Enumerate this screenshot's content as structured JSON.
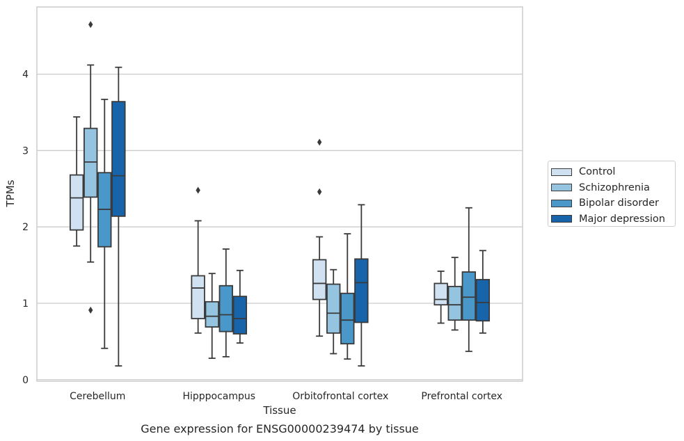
{
  "chart_data": {
    "type": "box",
    "xlabel": "Tissue",
    "ylabel": "TPMs",
    "caption": "Gene expression for ENSG00000239474 by tissue",
    "ylim": [
      -0.02,
      4.88
    ],
    "yticks": [
      0,
      1,
      2,
      3,
      4
    ],
    "grid": "horizontal",
    "legend_position": "right",
    "categories": [
      "Cerebellum",
      "Hipppocampus",
      "Orbitofrontal cortex",
      "Prefrontal cortex"
    ],
    "series": [
      {
        "name": "Control",
        "color": "#d0e1f2",
        "boxes": [
          {
            "whisker_low": 1.75,
            "q1": 1.96,
            "median": 2.38,
            "q3": 2.68,
            "whisker_high": 3.44,
            "outliers": []
          },
          {
            "whisker_low": 0.61,
            "q1": 0.8,
            "median": 1.2,
            "q3": 1.36,
            "whisker_high": 2.08,
            "outliers": [
              2.48
            ]
          },
          {
            "whisker_low": 0.57,
            "q1": 1.05,
            "median": 1.26,
            "q3": 1.57,
            "whisker_high": 1.87,
            "outliers": [
              2.46,
              3.11
            ]
          },
          {
            "whisker_low": 0.74,
            "q1": 0.98,
            "median": 1.05,
            "q3": 1.26,
            "whisker_high": 1.42,
            "outliers": []
          }
        ]
      },
      {
        "name": "Schizophrenia",
        "color": "#94c4df",
        "boxes": [
          {
            "whisker_low": 1.54,
            "q1": 2.39,
            "median": 2.85,
            "q3": 3.29,
            "whisker_high": 4.12,
            "outliers": [
              0.91,
              4.65
            ]
          },
          {
            "whisker_low": 0.28,
            "q1": 0.69,
            "median": 0.83,
            "q3": 1.02,
            "whisker_high": 1.39,
            "outliers": []
          },
          {
            "whisker_low": 0.34,
            "q1": 0.61,
            "median": 0.87,
            "q3": 1.25,
            "whisker_high": 1.44,
            "outliers": []
          },
          {
            "whisker_low": 0.65,
            "q1": 0.78,
            "median": 0.98,
            "q3": 1.22,
            "whisker_high": 1.6,
            "outliers": []
          }
        ]
      },
      {
        "name": "Bipolar disorder",
        "color": "#4a98c9",
        "boxes": [
          {
            "whisker_low": 0.41,
            "q1": 1.74,
            "median": 2.23,
            "q3": 2.71,
            "whisker_high": 3.67,
            "outliers": []
          },
          {
            "whisker_low": 0.3,
            "q1": 0.63,
            "median": 0.85,
            "q3": 1.23,
            "whisker_high": 1.71,
            "outliers": []
          },
          {
            "whisker_low": 0.27,
            "q1": 0.47,
            "median": 0.78,
            "q3": 1.13,
            "whisker_high": 1.91,
            "outliers": []
          },
          {
            "whisker_low": 0.37,
            "q1": 0.78,
            "median": 1.08,
            "q3": 1.41,
            "whisker_high": 2.25,
            "outliers": []
          }
        ]
      },
      {
        "name": "Major depression",
        "color": "#1764ab",
        "boxes": [
          {
            "whisker_low": 0.18,
            "q1": 2.14,
            "median": 2.67,
            "q3": 3.64,
            "whisker_high": 4.09,
            "outliers": []
          },
          {
            "whisker_low": 0.48,
            "q1": 0.6,
            "median": 0.8,
            "q3": 1.09,
            "whisker_high": 1.43,
            "outliers": []
          },
          {
            "whisker_low": 0.18,
            "q1": 0.75,
            "median": 1.27,
            "q3": 1.58,
            "whisker_high": 2.29,
            "outliers": []
          },
          {
            "whisker_low": 0.61,
            "q1": 0.77,
            "median": 1.01,
            "q3": 1.31,
            "whisker_high": 1.69,
            "outliers": []
          }
        ]
      }
    ]
  }
}
